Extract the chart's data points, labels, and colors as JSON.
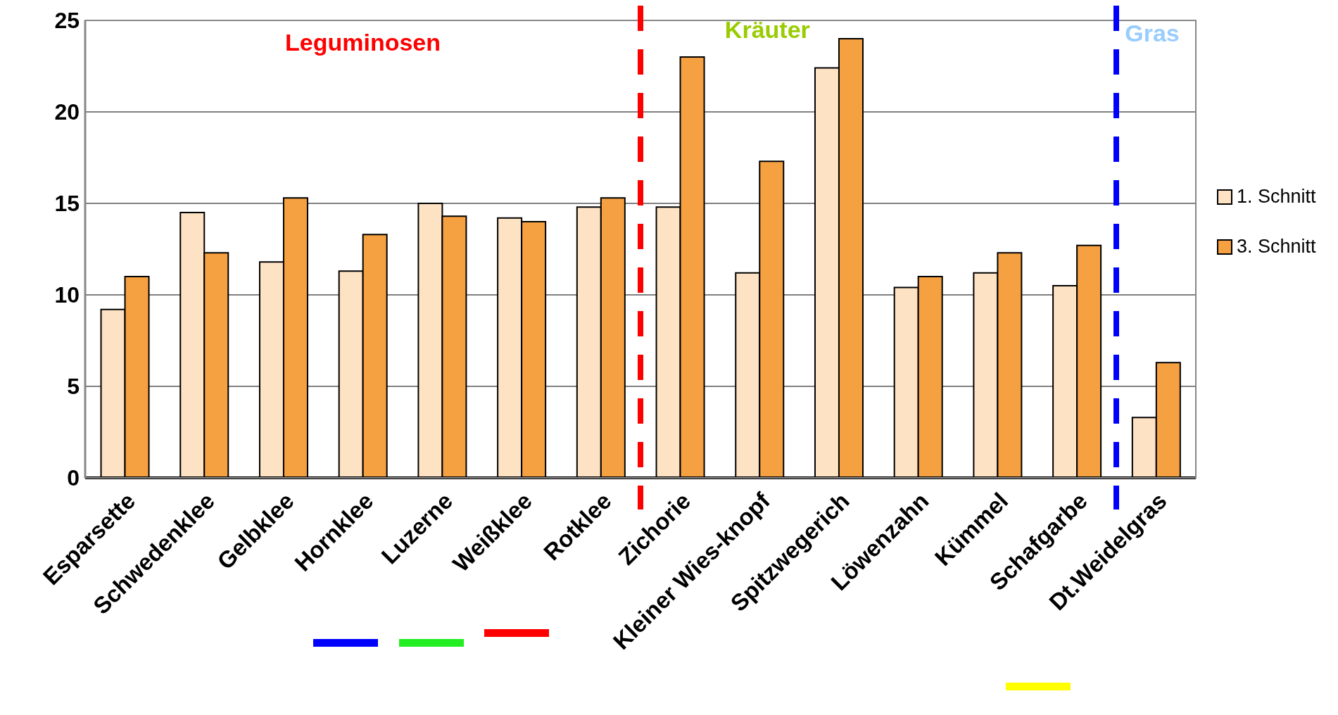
{
  "chart_data": {
    "type": "bar",
    "categories": [
      "Esparsette",
      "Schwedenklee",
      "Gelbklee",
      "Hornklee",
      "Luzerne",
      "Weißklee",
      "Rotklee",
      "Zichorie",
      "Kleiner Wies-knopf",
      "Spitzwegerich",
      "Löwenzahn",
      "Kümmel",
      "Schafgarbe",
      "Dt.Weidelgras"
    ],
    "series": [
      {
        "name": "1. Schnitt",
        "color": "#fde2c4",
        "values": [
          9.2,
          14.5,
          11.8,
          11.3,
          15.0,
          14.2,
          14.8,
          14.8,
          11.2,
          22.4,
          10.4,
          11.2,
          10.5,
          3.3
        ]
      },
      {
        "name": "3. Schnitt",
        "color": "#f5a142",
        "values": [
          11.0,
          12.3,
          15.3,
          13.3,
          14.3,
          14.0,
          15.3,
          23.0,
          17.3,
          24.0,
          11.0,
          12.3,
          12.7,
          6.3
        ]
      }
    ],
    "ylim": [
      0,
      25
    ],
    "yticks": [
      0,
      5,
      10,
      15,
      20,
      25
    ],
    "grid": "y",
    "legend": "right",
    "annotations": [
      "Leguminosen",
      "Kräuter",
      "Gras"
    ]
  }
}
